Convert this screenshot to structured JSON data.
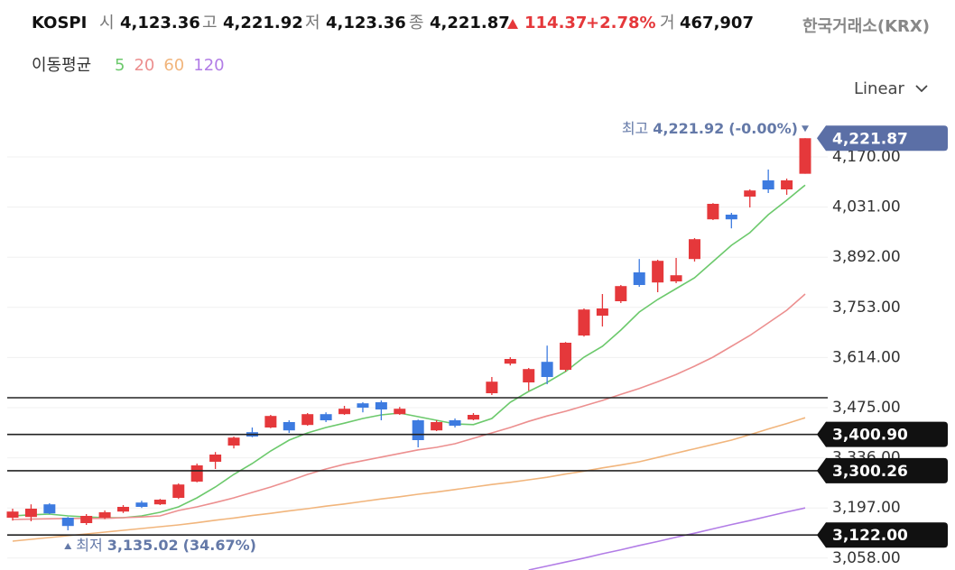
{
  "header": {
    "symbol": "KOSPI",
    "fields": [
      {
        "label": "시",
        "value": "4,123.36"
      },
      {
        "label": "고",
        "value": "4,221.92"
      },
      {
        "label": "저",
        "value": "4,123.36"
      },
      {
        "label": "종",
        "value": "4,221.87"
      }
    ],
    "change": "114.37",
    "change_pct": "+2.78%",
    "volume_label": "거",
    "volume": "467,907",
    "source": "한국거래소(KRX)"
  },
  "chart_data": {
    "type": "candlestick",
    "scale": "Linear",
    "ma_label": "이동평균",
    "up_color": "#e5383b",
    "down_color": "#3d7be0",
    "open": [
      3170,
      3172,
      3207,
      3170,
      3155,
      3170,
      3187,
      3212,
      3207,
      3225,
      3270,
      3325,
      3370,
      3407,
      3420,
      3435,
      3427,
      3457,
      3457,
      3487,
      3490,
      3457,
      3440,
      3412,
      3440,
      3442,
      3515,
      3597,
      3545,
      3602,
      3580,
      3675,
      3730,
      3770,
      3850,
      3822,
      3825,
      3887,
      3997,
      4010,
      4060,
      4105,
      4080,
      4123.36
    ],
    "high": [
      3195,
      3207,
      3210,
      3172,
      3180,
      3190,
      3205,
      3217,
      3222,
      3265,
      3320,
      3352,
      3395,
      3420,
      3455,
      3440,
      3460,
      3462,
      3480,
      3490,
      3495,
      3477,
      3442,
      3440,
      3445,
      3460,
      3560,
      3615,
      3585,
      3647,
      3657,
      3750,
      3790,
      3815,
      3887,
      3885,
      3890,
      3945,
      4042,
      4015,
      4080,
      4135,
      4110,
      4221.92
    ],
    "low": [
      3162,
      3160,
      3180,
      3135.02,
      3150,
      3166,
      3183,
      3197,
      3205,
      3222,
      3268,
      3305,
      3362,
      3393,
      3418,
      3405,
      3425,
      3435,
      3455,
      3462,
      3440,
      3455,
      3365,
      3410,
      3420,
      3440,
      3510,
      3592,
      3522,
      3540,
      3575,
      3672,
      3700,
      3765,
      3810,
      3795,
      3820,
      3880,
      3995,
      3972,
      4030,
      4070,
      4065,
      4123.36
    ],
    "close": [
      3187,
      3195,
      3182,
      3147,
      3175,
      3185,
      3200,
      3200,
      3220,
      3262,
      3315,
      3345,
      3392,
      3395,
      3452,
      3412,
      3457,
      3440,
      3472,
      3475,
      3470,
      3472,
      3385,
      3435,
      3425,
      3455,
      3547,
      3610,
      3582,
      3560,
      3655,
      3747,
      3750,
      3812,
      3815,
      3882,
      3842,
      3942,
      4040,
      3997,
      4077,
      4080,
      4105,
      4221.87
    ],
    "series": [
      {
        "name": "5",
        "color": "#6cc96c",
        "values": [
          3175,
          3178,
          3180,
          3175,
          3172,
          3170,
          3170,
          3175,
          3185,
          3200,
          3225,
          3255,
          3290,
          3320,
          3355,
          3385,
          3405,
          3420,
          3432,
          3445,
          3455,
          3460,
          3450,
          3440,
          3430,
          3428,
          3445,
          3490,
          3520,
          3545,
          3575,
          3615,
          3645,
          3690,
          3740,
          3775,
          3805,
          3835,
          3880,
          3925,
          3960,
          4010,
          4050,
          4092
        ]
      },
      {
        "name": "20",
        "color": "#ec8f8f",
        "values": [
          3165,
          3166,
          3167,
          3168,
          3168,
          3168,
          3170,
          3172,
          3175,
          3190,
          3200,
          3212,
          3225,
          3240,
          3255,
          3272,
          3290,
          3305,
          3318,
          3328,
          3338,
          3348,
          3358,
          3365,
          3375,
          3390,
          3405,
          3420,
          3437,
          3452,
          3465,
          3480,
          3495,
          3512,
          3528,
          3547,
          3567,
          3590,
          3615,
          3645,
          3675,
          3710,
          3745,
          3790
        ]
      },
      {
        "name": "60",
        "color": "#f1b57c",
        "values": [
          3105,
          3110,
          3115,
          3120,
          3125,
          3130,
          3135,
          3140,
          3145,
          3150,
          3156,
          3163,
          3169,
          3176,
          3182,
          3189,
          3195,
          3202,
          3208,
          3215,
          3222,
          3228,
          3235,
          3241,
          3248,
          3255,
          3262,
          3268,
          3275,
          3282,
          3291,
          3299,
          3308,
          3316,
          3325,
          3337,
          3349,
          3361,
          3373,
          3385,
          3400,
          3416,
          3431,
          3447
        ]
      },
      {
        "name": "120",
        "color": "#b27de6",
        "values": [
          null,
          null,
          null,
          null,
          null,
          null,
          null,
          null,
          null,
          null,
          null,
          null,
          null,
          null,
          null,
          null,
          null,
          null,
          null,
          null,
          null,
          null,
          null,
          null,
          null,
          null,
          null,
          null,
          3025,
          3036,
          3047,
          3058,
          3070,
          3081,
          3093,
          3104,
          3116,
          3127,
          3139,
          3151,
          3162,
          3174,
          3186,
          3197
        ]
      }
    ],
    "ylim": [
      3025,
      4280
    ],
    "yticks": [
      {
        "value": 3058,
        "label": "3,058.00"
      },
      {
        "value": 3197,
        "label": "3,197.00"
      },
      {
        "value": 3336,
        "label": "3,336.00"
      },
      {
        "value": 3475,
        "label": "3,475.00"
      },
      {
        "value": 3614,
        "label": "3,614.00"
      },
      {
        "value": 3753,
        "label": "3,753.00"
      },
      {
        "value": 3892,
        "label": "3,892.00"
      },
      {
        "value": 4031,
        "label": "4,031.00"
      },
      {
        "value": 4170,
        "label": "4,170.00"
      }
    ],
    "grid": true,
    "levels": [
      {
        "value": 3502.5
      },
      {
        "value": 3400.9,
        "label": "3,400.90"
      },
      {
        "value": 3300.26,
        "label": "3,300.26"
      },
      {
        "value": 3122,
        "label": "3,122.00"
      }
    ],
    "last": {
      "value": 4221.87,
      "label": "4,221.87"
    },
    "high_marker": {
      "text": "최고",
      "value": 4221.92,
      "value_label": "4,221.92",
      "pct": "(-0.00%)"
    },
    "low_marker": {
      "text": "최저",
      "value": 3135.02,
      "value_label": "3,135.02",
      "pct": "(34.67%)"
    }
  }
}
